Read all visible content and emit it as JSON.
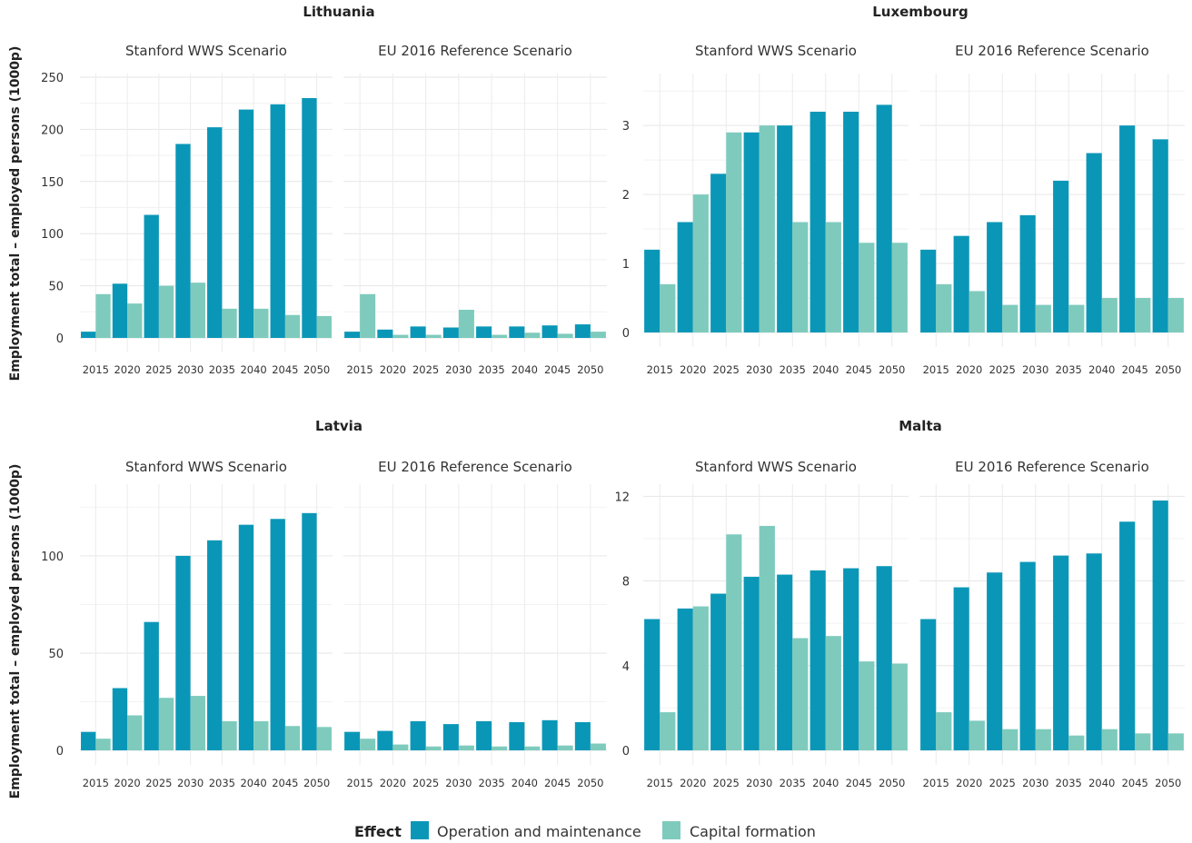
{
  "chart_data": {
    "type": "bar",
    "ylabel": "Employment total – employed persons (1000p)",
    "legend": {
      "title": "Effect",
      "position": "bottom",
      "items": [
        {
          "name": "Operation and maintenance",
          "color": "#0a97b7"
        },
        {
          "name": "Capital formation",
          "color": "#7ecbbd"
        }
      ]
    },
    "categories": [
      "2015",
      "2020",
      "2025",
      "2030",
      "2035",
      "2040",
      "2045",
      "2050"
    ],
    "scenarios": [
      "Stanford WWS Scenario",
      "EU 2016 Reference Scenario"
    ],
    "grid": true,
    "panels": [
      {
        "country": "Lithuania",
        "ylim": [
          0,
          250
        ],
        "yticks": [
          0,
          50,
          100,
          150,
          200,
          250
        ],
        "facets": [
          {
            "scenario": "Stanford WWS Scenario",
            "series": [
              {
                "name": "Operation and maintenance",
                "values": [
                  6,
                  52,
                  118,
                  186,
                  202,
                  219,
                  224,
                  230
                ]
              },
              {
                "name": "Capital formation",
                "values": [
                  42,
                  33,
                  50,
                  53,
                  28,
                  28,
                  22,
                  21
                ]
              }
            ]
          },
          {
            "scenario": "EU 2016 Reference Scenario",
            "series": [
              {
                "name": "Operation and maintenance",
                "values": [
                  6,
                  8,
                  11,
                  10,
                  11,
                  11,
                  12,
                  13
                ]
              },
              {
                "name": "Capital formation",
                "values": [
                  42,
                  3,
                  3,
                  27,
                  3,
                  5,
                  4,
                  6
                ]
              }
            ]
          }
        ]
      },
      {
        "country": "Luxembourg",
        "ylim": [
          0,
          3.7
        ],
        "yticks": [
          0,
          1,
          2,
          3
        ],
        "facets": [
          {
            "scenario": "Stanford WWS Scenario",
            "series": [
              {
                "name": "Operation and maintenance",
                "values": [
                  1.2,
                  1.6,
                  2.3,
                  2.9,
                  3.0,
                  3.2,
                  3.2,
                  3.3
                ]
              },
              {
                "name": "Capital formation",
                "values": [
                  0.7,
                  2.0,
                  2.9,
                  3.0,
                  1.6,
                  1.6,
                  1.3,
                  1.3
                ]
              }
            ]
          },
          {
            "scenario": "EU 2016 Reference Scenario",
            "series": [
              {
                "name": "Operation and maintenance",
                "values": [
                  1.2,
                  1.4,
                  1.6,
                  1.7,
                  2.2,
                  2.6,
                  3.0,
                  2.8
                ]
              },
              {
                "name": "Capital formation",
                "values": [
                  0.7,
                  0.6,
                  0.4,
                  0.4,
                  0.4,
                  0.5,
                  0.5,
                  0.5
                ]
              }
            ]
          }
        ]
      },
      {
        "country": "Latvia",
        "ylim": [
          0,
          135
        ],
        "yticks": [
          0,
          50,
          100
        ],
        "facets": [
          {
            "scenario": "Stanford WWS Scenario",
            "series": [
              {
                "name": "Operation and maintenance",
                "values": [
                  9.5,
                  32,
                  66,
                  100,
                  108,
                  116,
                  119,
                  122
                ]
              },
              {
                "name": "Capital formation",
                "values": [
                  6,
                  18,
                  27,
                  28,
                  15,
                  15,
                  12.5,
                  12
                ]
              }
            ]
          },
          {
            "scenario": "EU 2016 Reference Scenario",
            "series": [
              {
                "name": "Operation and maintenance",
                "values": [
                  9.5,
                  10,
                  15,
                  13.5,
                  15,
                  14.5,
                  15.5,
                  14.5
                ]
              },
              {
                "name": "Capital formation",
                "values": [
                  6,
                  3,
                  2,
                  2.5,
                  2,
                  2,
                  2.5,
                  3.5
                ]
              }
            ]
          }
        ]
      },
      {
        "country": "Malta",
        "ylim": [
          0,
          12.4
        ],
        "yticks": [
          0,
          4,
          8,
          12
        ],
        "facets": [
          {
            "scenario": "Stanford WWS Scenario",
            "series": [
              {
                "name": "Operation and maintenance",
                "values": [
                  6.2,
                  6.7,
                  7.4,
                  8.2,
                  8.3,
                  8.5,
                  8.6,
                  8.7
                ]
              },
              {
                "name": "Capital formation",
                "values": [
                  1.8,
                  6.8,
                  10.2,
                  10.6,
                  5.3,
                  5.4,
                  4.2,
                  4.1
                ]
              }
            ]
          },
          {
            "scenario": "EU 2016 Reference Scenario",
            "series": [
              {
                "name": "Operation and maintenance",
                "values": [
                  6.2,
                  7.7,
                  8.4,
                  8.9,
                  9.2,
                  9.3,
                  10.8,
                  11.8
                ]
              },
              {
                "name": "Capital formation",
                "values": [
                  1.8,
                  1.4,
                  1.0,
                  1.0,
                  0.7,
                  1.0,
                  0.8,
                  0.8
                ]
              }
            ]
          }
        ]
      }
    ]
  }
}
